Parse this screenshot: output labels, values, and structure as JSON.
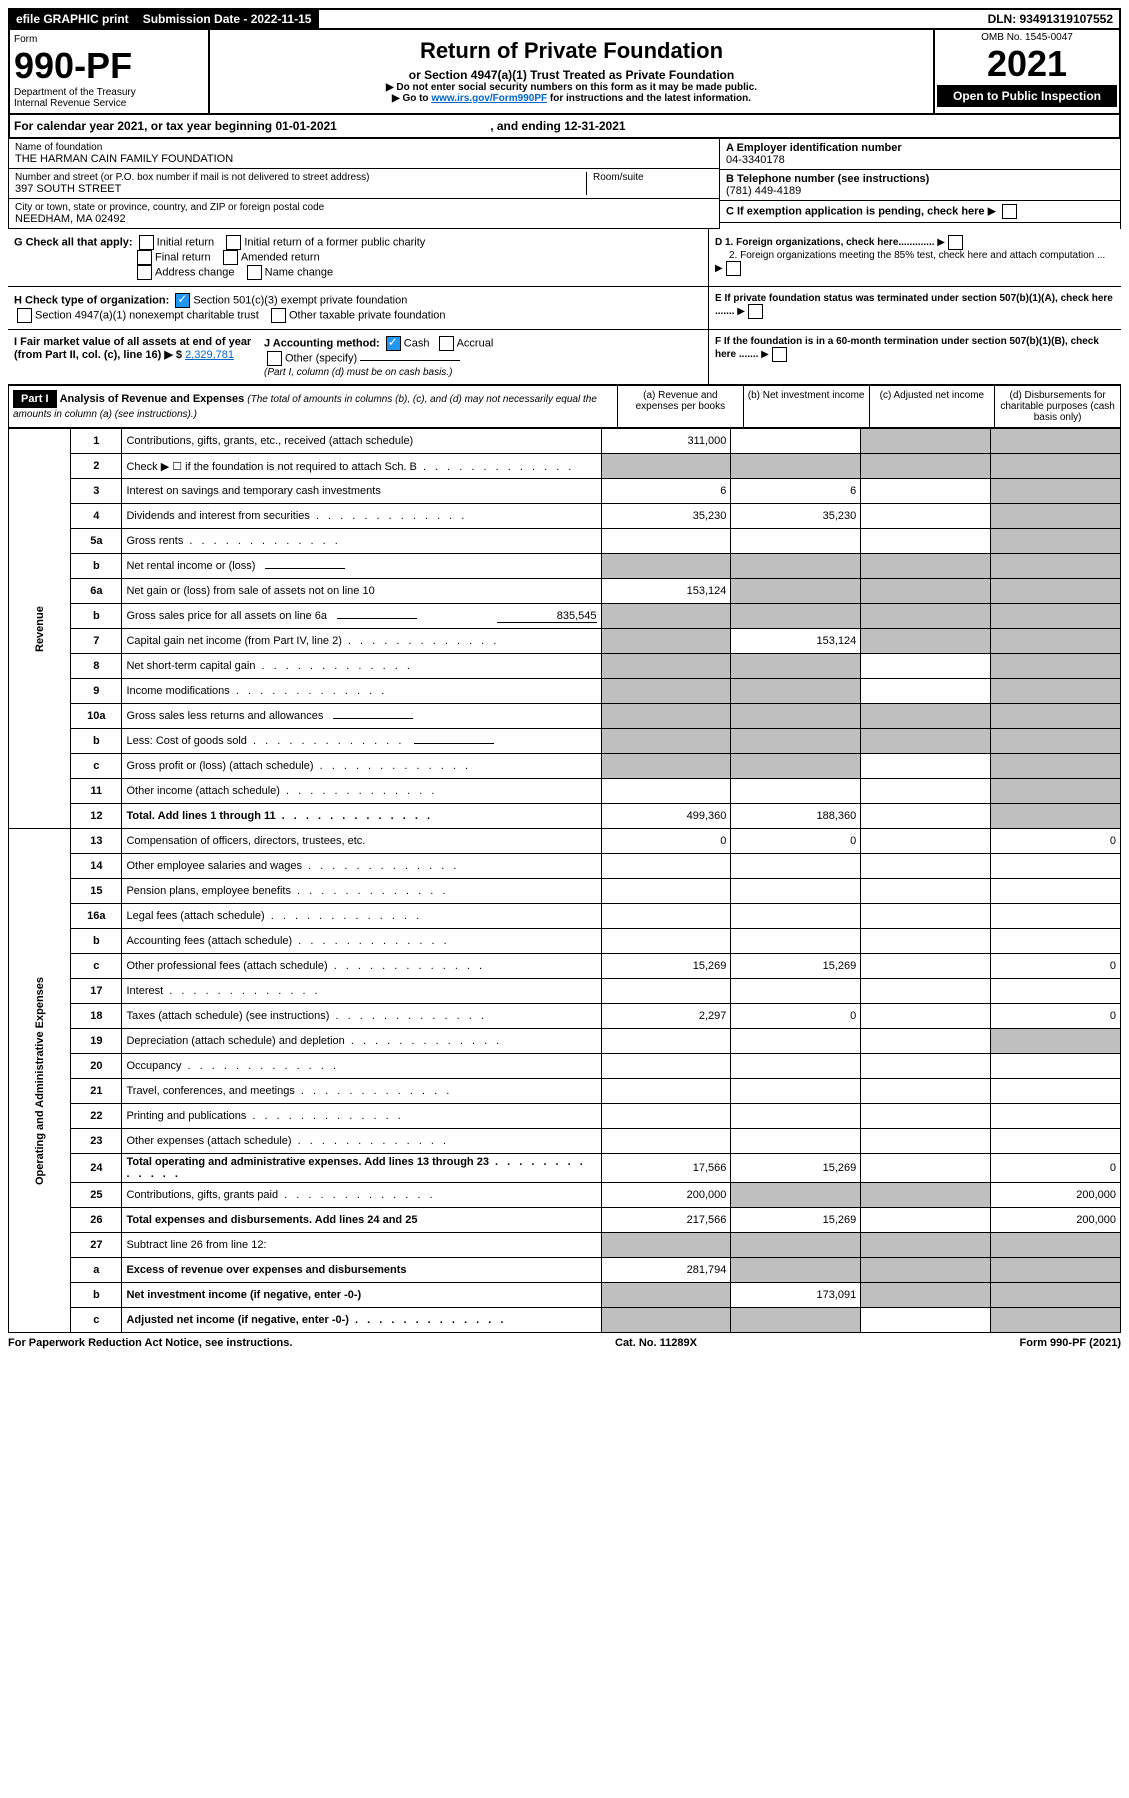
{
  "top_bar": {
    "efile": "efile GRAPHIC print",
    "submission": "Submission Date - 2022-11-15",
    "dln": "DLN: 93491319107552"
  },
  "header": {
    "form_label": "Form",
    "form_number": "990-PF",
    "dept": "Department of the Treasury",
    "irs": "Internal Revenue Service",
    "title": "Return of Private Foundation",
    "subtitle": "or Section 4947(a)(1) Trust Treated as Private Foundation",
    "note1": "▶ Do not enter social security numbers on this form as it may be made public.",
    "note2_prefix": "▶ Go to ",
    "note2_link": "www.irs.gov/Form990PF",
    "note2_suffix": " for instructions and the latest information.",
    "omb": "OMB No. 1545-0047",
    "year": "2021",
    "open": "Open to Public Inspection"
  },
  "cal_year": {
    "prefix": "For calendar year 2021, or tax year beginning ",
    "begin": "01-01-2021",
    "mid": " , and ending ",
    "end": "12-31-2021"
  },
  "entity": {
    "name_label": "Name of foundation",
    "name": "THE HARMAN CAIN FAMILY FOUNDATION",
    "addr_label": "Number and street (or P.O. box number if mail is not delivered to street address)",
    "addr": "397 SOUTH STREET",
    "room_label": "Room/suite",
    "city_label": "City or town, state or province, country, and ZIP or foreign postal code",
    "city": "NEEDHAM, MA  02492",
    "ein_label": "A Employer identification number",
    "ein": "04-3340178",
    "phone_label": "B Telephone number (see instructions)",
    "phone": "(781) 449-4189",
    "c_label": "C If exemption application is pending, check here"
  },
  "checks": {
    "g_label": "G Check all that apply:",
    "g_opts": [
      "Initial return",
      "Initial return of a former public charity",
      "Final return",
      "Amended return",
      "Address change",
      "Name change"
    ],
    "h_label": "H Check type of organization:",
    "h1": "Section 501(c)(3) exempt private foundation",
    "h2": "Section 4947(a)(1) nonexempt charitable trust",
    "h3": "Other taxable private foundation",
    "i_label": "I Fair market value of all assets at end of year (from Part II, col. (c), line 16) ▶ $",
    "i_value": "2,329,781",
    "j_label": "J Accounting method:",
    "j_opts": [
      "Cash",
      "Accrual"
    ],
    "j_other": "Other (specify)",
    "j_note": "(Part I, column (d) must be on cash basis.)",
    "d1": "D 1. Foreign organizations, check here.............",
    "d2": "2. Foreign organizations meeting the 85% test, check here and attach computation ...",
    "e": "E  If private foundation status was terminated under section 507(b)(1)(A), check here .......",
    "f": "F  If the foundation is in a 60-month termination under section 507(b)(1)(B), check here .......",
    "arrow": "▶"
  },
  "part1": {
    "label": "Part I",
    "title": "Analysis of Revenue and Expenses",
    "title_note": " (The total of amounts in columns (b), (c), and (d) may not necessarily equal the amounts in column (a) (see instructions).)",
    "col_a": "(a)  Revenue and expenses per books",
    "col_b": "(b)  Net investment income",
    "col_c": "(c)  Adjusted net income",
    "col_d": "(d)  Disbursements for charitable purposes (cash basis only)"
  },
  "side_labels": {
    "revenue": "Revenue",
    "expenses": "Operating and Administrative Expenses"
  },
  "rows": [
    {
      "n": "1",
      "desc": "Contributions, gifts, grants, etc., received (attach schedule)",
      "a": "311,000",
      "b": "",
      "c": "grey",
      "d": "grey"
    },
    {
      "n": "2",
      "desc": "Check ▶ ☐ if the foundation is not required to attach Sch. B",
      "a": "grey",
      "b": "grey",
      "c": "grey",
      "d": "grey",
      "dots": true
    },
    {
      "n": "3",
      "desc": "Interest on savings and temporary cash investments",
      "a": "6",
      "b": "6",
      "c": "",
      "d": "grey"
    },
    {
      "n": "4",
      "desc": "Dividends and interest from securities",
      "a": "35,230",
      "b": "35,230",
      "c": "",
      "d": "grey",
      "dots": true
    },
    {
      "n": "5a",
      "desc": "Gross rents",
      "a": "",
      "b": "",
      "c": "",
      "d": "grey",
      "dots": true
    },
    {
      "n": "b",
      "desc": "Net rental income or (loss)",
      "a": "grey",
      "b": "grey",
      "c": "grey",
      "d": "grey",
      "underline": true
    },
    {
      "n": "6a",
      "desc": "Net gain or (loss) from sale of assets not on line 10",
      "a": "153,124",
      "b": "grey",
      "c": "grey",
      "d": "grey"
    },
    {
      "n": "b",
      "desc": "Gross sales price for all assets on line 6a",
      "extra": "835,545",
      "a": "grey",
      "b": "grey",
      "c": "grey",
      "d": "grey",
      "underline": true
    },
    {
      "n": "7",
      "desc": "Capital gain net income (from Part IV, line 2)",
      "a": "grey",
      "b": "153,124",
      "c": "grey",
      "d": "grey",
      "dots": true
    },
    {
      "n": "8",
      "desc": "Net short-term capital gain",
      "a": "grey",
      "b": "grey",
      "c": "",
      "d": "grey",
      "dots": true
    },
    {
      "n": "9",
      "desc": "Income modifications",
      "a": "grey",
      "b": "grey",
      "c": "",
      "d": "grey",
      "dots": true
    },
    {
      "n": "10a",
      "desc": "Gross sales less returns and allowances",
      "a": "grey",
      "b": "grey",
      "c": "grey",
      "d": "grey",
      "underline": true
    },
    {
      "n": "b",
      "desc": "Less: Cost of goods sold",
      "a": "grey",
      "b": "grey",
      "c": "grey",
      "d": "grey",
      "underline": true,
      "dots": true
    },
    {
      "n": "c",
      "desc": "Gross profit or (loss) (attach schedule)",
      "a": "grey",
      "b": "grey",
      "c": "",
      "d": "grey",
      "dots": true
    },
    {
      "n": "11",
      "desc": "Other income (attach schedule)",
      "a": "",
      "b": "",
      "c": "",
      "d": "grey",
      "dots": true
    },
    {
      "n": "12",
      "desc": "Total. Add lines 1 through 11",
      "a": "499,360",
      "b": "188,360",
      "c": "",
      "d": "grey",
      "bold": true,
      "dots": true
    },
    {
      "n": "13",
      "desc": "Compensation of officers, directors, trustees, etc.",
      "a": "0",
      "b": "0",
      "c": "",
      "d": "0"
    },
    {
      "n": "14",
      "desc": "Other employee salaries and wages",
      "a": "",
      "b": "",
      "c": "",
      "d": "",
      "dots": true
    },
    {
      "n": "15",
      "desc": "Pension plans, employee benefits",
      "a": "",
      "b": "",
      "c": "",
      "d": "",
      "dots": true
    },
    {
      "n": "16a",
      "desc": "Legal fees (attach schedule)",
      "a": "",
      "b": "",
      "c": "",
      "d": "",
      "dots": true
    },
    {
      "n": "b",
      "desc": "Accounting fees (attach schedule)",
      "a": "",
      "b": "",
      "c": "",
      "d": "",
      "dots": true
    },
    {
      "n": "c",
      "desc": "Other professional fees (attach schedule)",
      "a": "15,269",
      "b": "15,269",
      "c": "",
      "d": "0",
      "dots": true
    },
    {
      "n": "17",
      "desc": "Interest",
      "a": "",
      "b": "",
      "c": "",
      "d": "",
      "dots": true
    },
    {
      "n": "18",
      "desc": "Taxes (attach schedule) (see instructions)",
      "a": "2,297",
      "b": "0",
      "c": "",
      "d": "0",
      "dots": true
    },
    {
      "n": "19",
      "desc": "Depreciation (attach schedule) and depletion",
      "a": "",
      "b": "",
      "c": "",
      "d": "grey",
      "dots": true
    },
    {
      "n": "20",
      "desc": "Occupancy",
      "a": "",
      "b": "",
      "c": "",
      "d": "",
      "dots": true
    },
    {
      "n": "21",
      "desc": "Travel, conferences, and meetings",
      "a": "",
      "b": "",
      "c": "",
      "d": "",
      "dots": true
    },
    {
      "n": "22",
      "desc": "Printing and publications",
      "a": "",
      "b": "",
      "c": "",
      "d": "",
      "dots": true
    },
    {
      "n": "23",
      "desc": "Other expenses (attach schedule)",
      "a": "",
      "b": "",
      "c": "",
      "d": "",
      "dots": true
    },
    {
      "n": "24",
      "desc": "Total operating and administrative expenses. Add lines 13 through 23",
      "a": "17,566",
      "b": "15,269",
      "c": "",
      "d": "0",
      "bold": true,
      "dots": true
    },
    {
      "n": "25",
      "desc": "Contributions, gifts, grants paid",
      "a": "200,000",
      "b": "grey",
      "c": "grey",
      "d": "200,000",
      "dots": true
    },
    {
      "n": "26",
      "desc": "Total expenses and disbursements. Add lines 24 and 25",
      "a": "217,566",
      "b": "15,269",
      "c": "",
      "d": "200,000",
      "bold": true
    },
    {
      "n": "27",
      "desc": "Subtract line 26 from line 12:",
      "a": "grey",
      "b": "grey",
      "c": "grey",
      "d": "grey"
    },
    {
      "n": "a",
      "desc": "Excess of revenue over expenses and disbursements",
      "a": "281,794",
      "b": "grey",
      "c": "grey",
      "d": "grey",
      "bold": true
    },
    {
      "n": "b",
      "desc": "Net investment income (if negative, enter -0-)",
      "a": "grey",
      "b": "173,091",
      "c": "grey",
      "d": "grey",
      "bold": true
    },
    {
      "n": "c",
      "desc": "Adjusted net income (if negative, enter -0-)",
      "a": "grey",
      "b": "grey",
      "c": "",
      "d": "grey",
      "bold": true,
      "dots": true
    }
  ],
  "footer": {
    "left": "For Paperwork Reduction Act Notice, see instructions.",
    "mid": "Cat. No. 11289X",
    "right": "Form 990-PF (2021)"
  }
}
